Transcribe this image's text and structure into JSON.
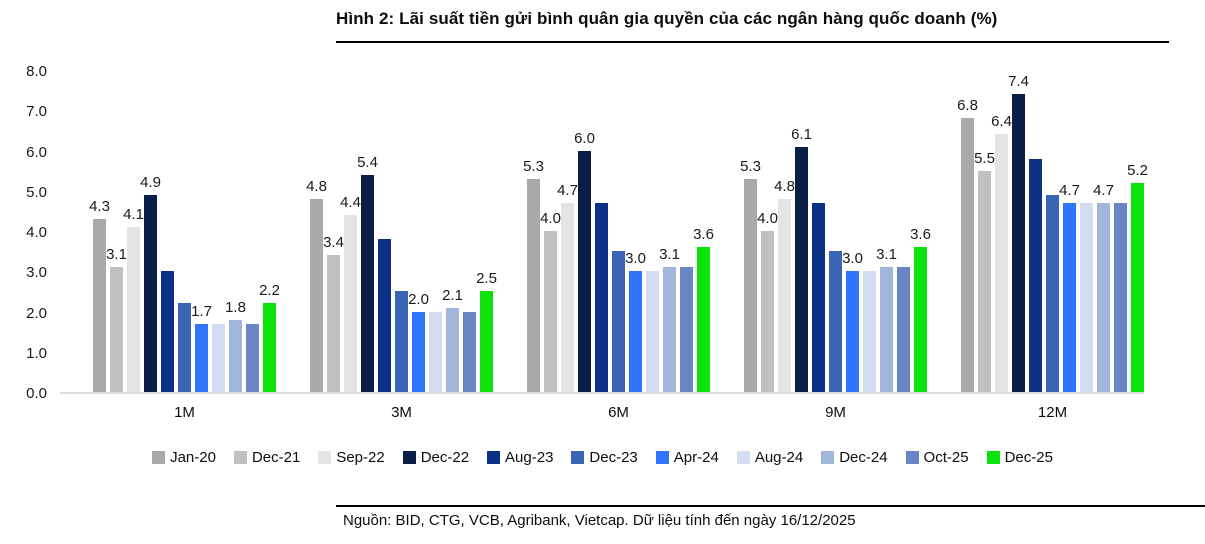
{
  "header": {
    "title": "Hình 2: Lãi suất tiền gửi bình quân gia quyền của các ngân hàng quốc doanh (%)"
  },
  "source": {
    "text": "Nguồn: BID, CTG, VCB, Agribank, Vietcap. Dữ liệu tính đến ngày 16/12/2025"
  },
  "chart_data": {
    "type": "bar",
    "title": "Hình 2: Lãi suất tiền gửi bình quân gia quyền của các ngân hàng quốc doanh (%)",
    "categories": [
      "1M",
      "3M",
      "6M",
      "9M",
      "12M"
    ],
    "series": [
      {
        "name": "Jan-20",
        "color": "#a9a9a9",
        "labeled": true,
        "values": [
          4.3,
          4.8,
          5.3,
          5.3,
          6.8
        ]
      },
      {
        "name": "Dec-21",
        "color": "#c0c0c0",
        "labeled": true,
        "values": [
          3.1,
          3.4,
          4.0,
          4.0,
          5.5
        ]
      },
      {
        "name": "Sep-22",
        "color": "#e5e4e4",
        "labeled": true,
        "values": [
          4.1,
          4.4,
          4.7,
          4.8,
          6.4
        ]
      },
      {
        "name": "Dec-22",
        "color": "#0a1e48",
        "labeled": true,
        "values": [
          4.9,
          5.4,
          6.0,
          6.1,
          7.4
        ]
      },
      {
        "name": "Aug-23",
        "color": "#0c3187",
        "labeled": false,
        "values": [
          3.0,
          3.8,
          4.7,
          4.7,
          5.8
        ]
      },
      {
        "name": "Dec-23",
        "color": "#3a64b4",
        "labeled": false,
        "values": [
          2.2,
          2.5,
          3.5,
          3.5,
          4.9
        ]
      },
      {
        "name": "Apr-24",
        "color": "#2e74ff",
        "labeled": true,
        "values": [
          1.7,
          2.0,
          3.0,
          3.0,
          4.7
        ]
      },
      {
        "name": "Aug-24",
        "color": "#d3dcf0",
        "labeled": false,
        "values": [
          1.7,
          2.0,
          3.0,
          3.0,
          4.7
        ]
      },
      {
        "name": "Dec-24",
        "color": "#a1b5db",
        "labeled": true,
        "values": [
          1.8,
          2.1,
          3.1,
          3.1,
          4.7
        ]
      },
      {
        "name": "Oct-25",
        "color": "#6985c4",
        "labeled": false,
        "values": [
          1.7,
          2.0,
          3.1,
          3.1,
          4.7
        ]
      },
      {
        "name": "Dec-25",
        "color": "#0be30b",
        "labeled": true,
        "values": [
          2.2,
          2.5,
          3.6,
          3.6,
          5.2
        ]
      }
    ],
    "ylim": [
      0,
      8
    ],
    "y_ticks": [
      "8.0",
      "7.0",
      "6.0",
      "5.0",
      "4.0",
      "3.0",
      "2.0",
      "1.0",
      "0.0"
    ],
    "grid": false,
    "legend_position": "bottom"
  }
}
